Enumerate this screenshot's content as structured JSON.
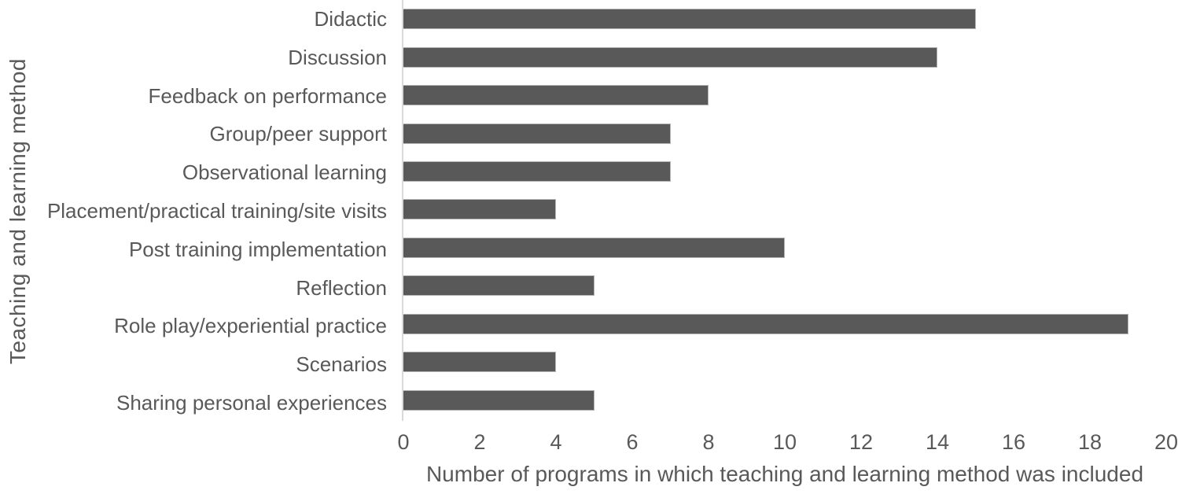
{
  "chart_data": {
    "type": "bar",
    "orientation": "horizontal",
    "title": "",
    "categories": [
      "Didactic",
      "Discussion",
      "Feedback on performance",
      "Group/peer support",
      "Observational learning",
      "Placement/practical training/site visits",
      "Post training implementation",
      "Reflection",
      "Role play/experiential practice",
      "Scenarios",
      "Sharing personal experiences"
    ],
    "values": [
      15,
      14,
      8,
      7,
      7,
      4,
      10,
      5,
      19,
      4,
      5
    ],
    "xlabel": "Number of programs in which teaching and learning method was included",
    "ylabel": "Teaching and learning method",
    "xlim": [
      0,
      20
    ],
    "xticks": [
      0,
      2,
      4,
      6,
      8,
      10,
      12,
      14,
      16,
      18,
      20
    ],
    "grid": false,
    "legend": false,
    "colors": {
      "bar_fill": "#595959",
      "bar_border": "#b3b3b3",
      "axis_line": "#d9d9d9",
      "text": "#595959",
      "background": "#ffffff"
    }
  }
}
